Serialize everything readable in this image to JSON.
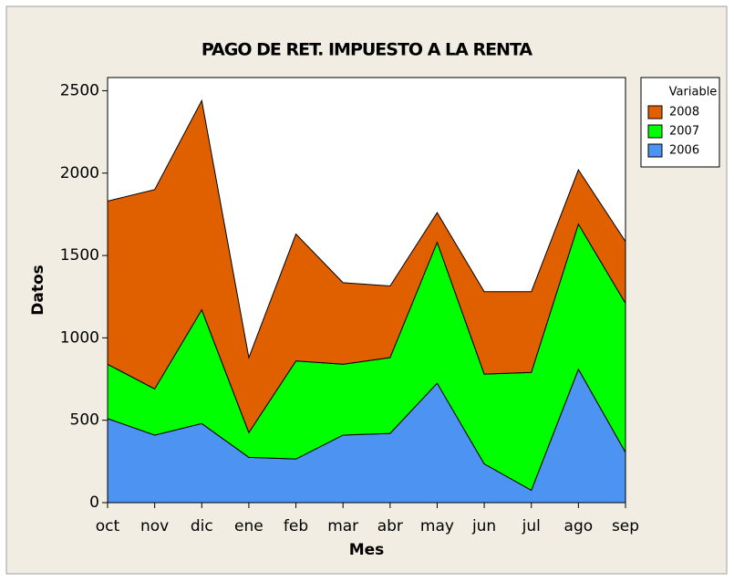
{
  "chart_data": {
    "type": "stacked_area",
    "title": "PAGO DE RET. IMPUESTO A LA RENTA",
    "x_label": "Mes",
    "y_label": "Datos",
    "legend_title": "Variable",
    "legend": "right",
    "categories": [
      "oct",
      "nov",
      "dic",
      "ene",
      "feb",
      "mar",
      "abr",
      "may",
      "jun",
      "jul",
      "ago",
      "sep"
    ],
    "series": [
      {
        "name": "2006",
        "color": "#4d94f2",
        "values": [
          510,
          410,
          480,
          275,
          265,
          410,
          420,
          725,
          235,
          75,
          810,
          305
        ]
      },
      {
        "name": "2007",
        "color": "#00ff00",
        "values": [
          330,
          280,
          690,
          150,
          595,
          430,
          460,
          855,
          545,
          715,
          880,
          905
        ]
      },
      {
        "name": "2008",
        "color": "#e06000",
        "values": [
          990,
          1210,
          1270,
          455,
          770,
          495,
          435,
          180,
          500,
          490,
          330,
          375
        ]
      }
    ],
    "ylim": [
      0,
      2580
    ],
    "yticks": [
      0,
      500,
      1000,
      1500,
      2000,
      2500
    ]
  }
}
